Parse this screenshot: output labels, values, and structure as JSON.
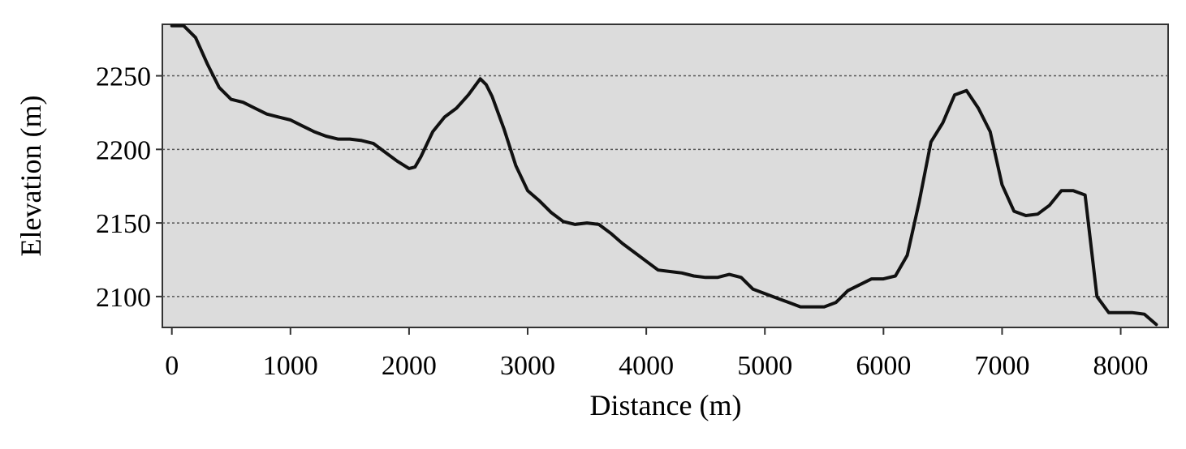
{
  "chart_data": {
    "type": "line",
    "title": "",
    "xlabel": "Distance (m)",
    "ylabel": "Elevation  (m)",
    "xlim": [
      -80,
      8400
    ],
    "ylim": [
      2079,
      2285
    ],
    "xticks": [
      0,
      1000,
      2000,
      3000,
      4000,
      5000,
      6000,
      7000,
      8000
    ],
    "xtick_labels": [
      "0",
      "1000",
      "2000",
      "3000",
      "4000",
      "5000",
      "6000",
      "7000",
      "8000"
    ],
    "yticks": [
      2100,
      2150,
      2200,
      2250
    ],
    "ytick_labels": [
      "2100",
      "2150",
      "2200",
      "2250"
    ],
    "grid": "horizontal-dotted",
    "background_color": "#dcdcdc",
    "line_color": "#111111",
    "series": [
      {
        "x": [
          0,
          100,
          200,
          300,
          400,
          500,
          600,
          700,
          800,
          900,
          1000,
          1100,
          1200,
          1300,
          1400,
          1500,
          1600,
          1700,
          1800,
          1900,
          2000,
          2050,
          2100,
          2200,
          2300,
          2400,
          2500,
          2600,
          2650,
          2700,
          2800,
          2900,
          3000,
          3100,
          3200,
          3300,
          3400,
          3500,
          3600,
          3700,
          3800,
          3900,
          4000,
          4100,
          4200,
          4300,
          4400,
          4500,
          4600,
          4700,
          4800,
          4900,
          5000,
          5100,
          5200,
          5300,
          5400,
          5500,
          5600,
          5700,
          5800,
          5900,
          6000,
          6100,
          6200,
          6300,
          6400,
          6500,
          6600,
          6700,
          6800,
          6900,
          7000,
          7100,
          7200,
          7300,
          7400,
          7500,
          7600,
          7700,
          7800,
          7900,
          8000,
          8100,
          8200,
          8300
        ],
        "y": [
          2284,
          2284,
          2276,
          2258,
          2242,
          2234,
          2232,
          2228,
          2224,
          2222,
          2220,
          2216,
          2212,
          2209,
          2207,
          2207,
          2206,
          2204,
          2198,
          2192,
          2187,
          2188,
          2195,
          2212,
          2222,
          2228,
          2237,
          2248,
          2244,
          2236,
          2214,
          2189,
          2172,
          2165,
          2157,
          2151,
          2149,
          2150,
          2149,
          2143,
          2136,
          2130,
          2124,
          2118,
          2117,
          2116,
          2114,
          2113,
          2113,
          2115,
          2113,
          2105,
          2102,
          2099,
          2096,
          2093,
          2093,
          2093,
          2096,
          2104,
          2108,
          2112,
          2112,
          2114,
          2128,
          2164,
          2205,
          2218,
          2237,
          2240,
          2228,
          2212,
          2176,
          2158,
          2155,
          2156,
          2162,
          2172,
          2172,
          2169,
          2100,
          2089,
          2089,
          2089,
          2088,
          2081
        ]
      }
    ]
  }
}
